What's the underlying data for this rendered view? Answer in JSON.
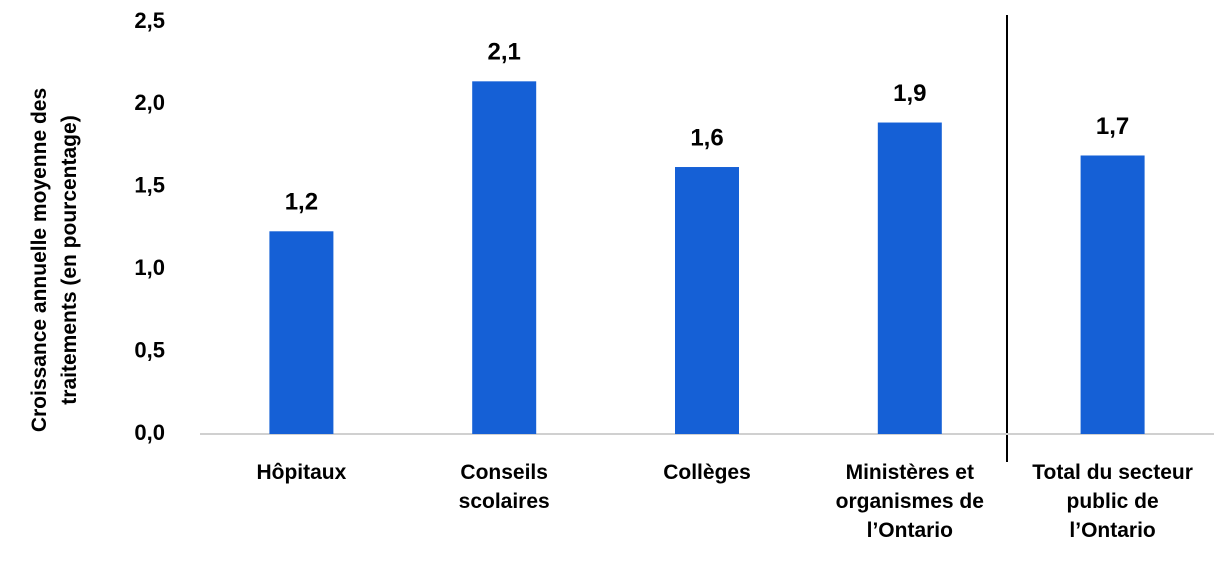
{
  "chart_data": {
    "type": "bar",
    "y_label": "Croissance annuelle moyenne des\ntraitements (en pourcentage)",
    "categories": [
      "Hôpitaux",
      "Conseils\nscolaires",
      "Collèges",
      "Ministères et\norganismes de\nl’Ontario",
      "Total du secteur\npublic de\nl’Ontario"
    ],
    "values": [
      1.23,
      2.14,
      1.62,
      1.89,
      1.69
    ],
    "value_labels": [
      "1,2",
      "2,1",
      "1,6",
      "1,9",
      "1,7"
    ],
    "color": "#1560d6",
    "ylim": [
      0,
      2.5
    ],
    "yticks": [
      {
        "value": 0,
        "label": "0,0"
      },
      {
        "value": 0.5,
        "label": "0,5"
      },
      {
        "value": 1,
        "label": "1,0"
      },
      {
        "value": 1.5,
        "label": "1,5"
      },
      {
        "value": 2,
        "label": "2,0"
      },
      {
        "value": 2.5,
        "label": "2,5"
      }
    ],
    "grid": false
  }
}
